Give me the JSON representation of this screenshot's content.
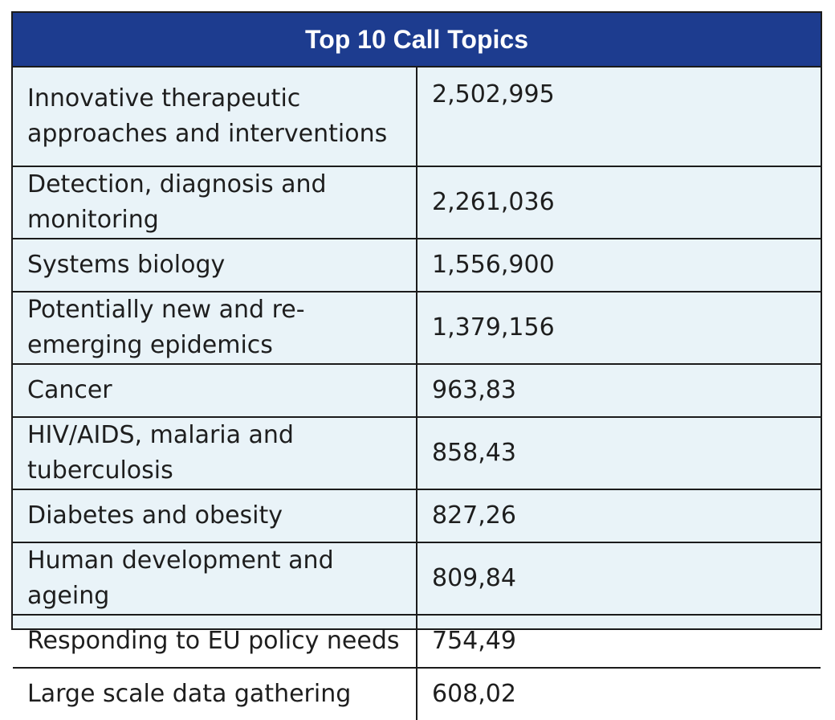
{
  "table": {
    "title": "Top 10 Call Topics",
    "rows": [
      {
        "topic": "Innovative therapeutic approaches and interventions",
        "value": "2,502,995"
      },
      {
        "topic": "Detection, diagnosis and monitoring",
        "value": "2,261,036"
      },
      {
        "topic": "Systems biology",
        "value": "1,556,900"
      },
      {
        "topic": "Potentially new and re-emerging epidemics",
        "value": "1,379,156"
      },
      {
        "topic": "Cancer",
        "value": "963,83"
      },
      {
        "topic": "HIV/AIDS, malaria and tuberculosis",
        "value": "858,43"
      },
      {
        "topic": "Diabetes and obesity",
        "value": "827,26"
      },
      {
        "topic": "Human development and ageing",
        "value": "809,84"
      },
      {
        "topic": "Responding to EU policy needs",
        "value": "754,49"
      },
      {
        "topic": "Large scale data gathering",
        "value": "608,02"
      }
    ]
  },
  "colors": {
    "header_bg": "#1d3c8f",
    "body_bg": "#e9f3f8",
    "border": "#1b1b1b"
  }
}
